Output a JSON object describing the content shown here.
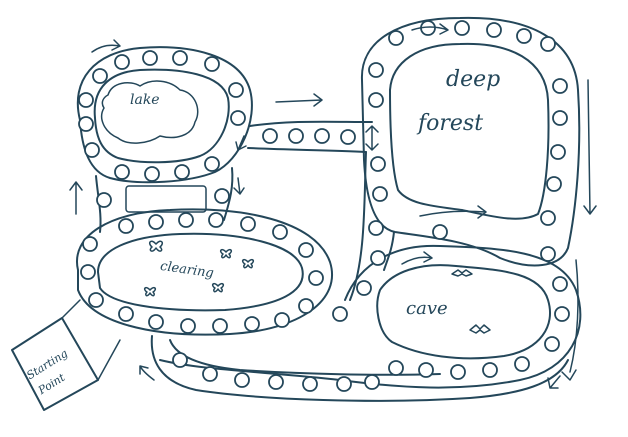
{
  "board": {
    "ink_color": "#24475a",
    "paper_color": "#ffffff",
    "labels": {
      "lake": "lake",
      "clearing": "clearing",
      "deep": "deep",
      "forest": "forest",
      "cave": "cave",
      "start_line1": "Starting",
      "start_line2": "Point"
    },
    "icons": [
      "butterfly-icon",
      "bat-icon",
      "direction-arrow-icon"
    ]
  }
}
